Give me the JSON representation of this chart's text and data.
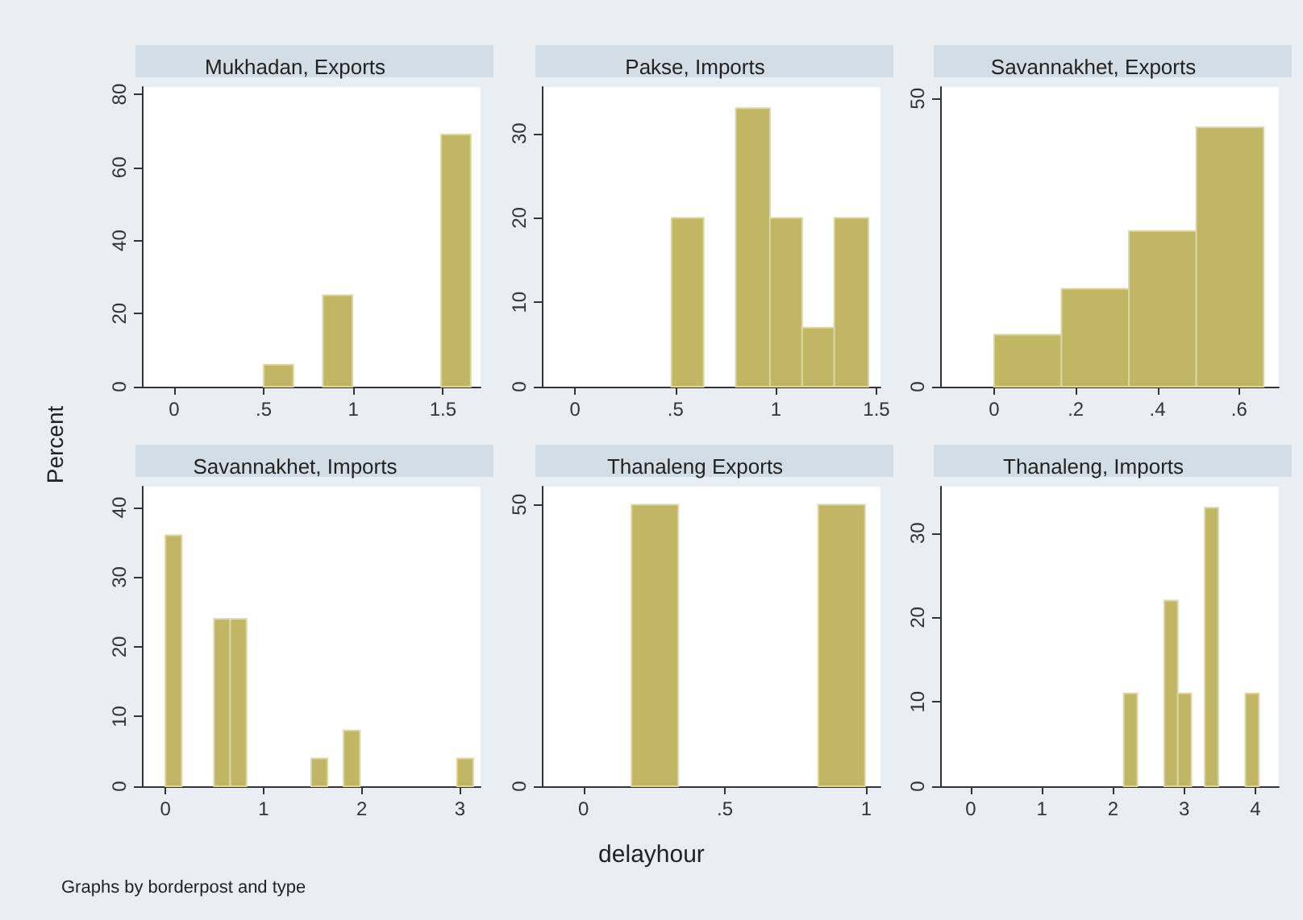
{
  "chart_data": [
    {
      "type": "histogram",
      "title": "Mukhadan, Exports",
      "ylabel": "Percent",
      "color": "#c0b663",
      "bins": [
        0.5,
        0.665,
        0.83,
        0.995,
        1.16,
        1.325,
        1.49,
        1.655
      ],
      "values": [
        6,
        0,
        25,
        0,
        0,
        0,
        69
      ],
      "xlim": [
        -0.18,
        1.71
      ],
      "xticks": [
        0,
        {
          "value": 0.5,
          "label": ".5"
        },
        1,
        1.5
      ],
      "ylim": [
        0,
        82
      ],
      "yticks": [
        0,
        20,
        40,
        60,
        80
      ],
      "grid": false
    },
    {
      "type": "histogram",
      "title": "Pakse, Imports",
      "color": "#c0b663",
      "bins": [
        0.48,
        0.64,
        0.8,
        0.97,
        1.13,
        1.29,
        1.46
      ],
      "values": [
        20,
        0,
        33,
        20,
        7,
        20
      ],
      "xlim": [
        -0.165,
        1.52
      ],
      "xticks": [
        0,
        {
          "value": 0.5,
          "label": ".5"
        },
        1,
        1.5
      ],
      "ylim": [
        0,
        35.5
      ],
      "yticks": [
        0,
        10,
        20,
        30
      ],
      "grid": false
    },
    {
      "type": "histogram",
      "title": "Savannakhet, Exports",
      "color": "#c0b663",
      "bins": [
        0,
        0.165,
        0.33,
        0.495,
        0.66
      ],
      "values": [
        9,
        17,
        27,
        45
      ],
      "xlim": [
        -0.132,
        0.697
      ],
      "xticks": [
        0,
        {
          "value": 0.2,
          "label": ".2"
        },
        {
          "value": 0.4,
          "label": ".4"
        },
        {
          "value": 0.6,
          "label": ".6"
        }
      ],
      "ylim": [
        0,
        52
      ],
      "yticks": [
        0,
        50
      ],
      "grid": false
    },
    {
      "type": "histogram",
      "title": "Savannakhet, Imports",
      "annotations": [
        "Graphs by borderpost and type"
      ],
      "color": "#c0b663",
      "bins": [
        0,
        0.165,
        0.33,
        0.495,
        0.66,
        0.825,
        0.99,
        1.155,
        1.32,
        1.485,
        1.65,
        1.815,
        1.98,
        2.145,
        2.31,
        2.475,
        2.64,
        2.805,
        2.97,
        3.135
      ],
      "values": [
        36,
        0,
        0,
        24,
        24,
        0,
        0,
        0,
        0,
        4,
        0,
        8,
        0,
        0,
        0,
        0,
        0,
        0,
        4
      ],
      "xlim": [
        -0.24,
        3.21
      ],
      "xticks": [
        0,
        1,
        2,
        3
      ],
      "ylim": [
        0,
        43
      ],
      "yticks": [
        0,
        10,
        20,
        30,
        40
      ],
      "grid": false
    },
    {
      "type": "histogram",
      "title": "Thanaleng Exports",
      "xlabel": "delayhour",
      "color": "#c0b663",
      "bins": [
        0.17,
        0.335,
        0.5,
        0.665,
        0.83,
        0.995
      ],
      "values": [
        50,
        0,
        0,
        0,
        50
      ],
      "xlim": [
        -0.147,
        1.05
      ],
      "xticks": [
        0,
        {
          "value": 0.5,
          "label": ".5"
        },
        1
      ],
      "ylim": [
        0,
        53.2
      ],
      "yticks": [
        0,
        50
      ],
      "grid": false
    },
    {
      "type": "histogram",
      "title": "Thanaleng, Imports",
      "color": "#c0b663",
      "bins": [
        2.15,
        2.34,
        2.53,
        2.72,
        2.91,
        3.1,
        3.29,
        3.48,
        3.67,
        3.86,
        4.05
      ],
      "values": [
        11,
        0,
        0,
        22,
        11,
        0,
        33,
        0,
        0,
        11
      ],
      "xlim": [
        -0.43,
        4.33
      ],
      "xticks": [
        0,
        1,
        2,
        3,
        4
      ],
      "ylim": [
        0,
        35.5
      ],
      "yticks": [
        0,
        10,
        20,
        30
      ],
      "grid": false
    }
  ]
}
